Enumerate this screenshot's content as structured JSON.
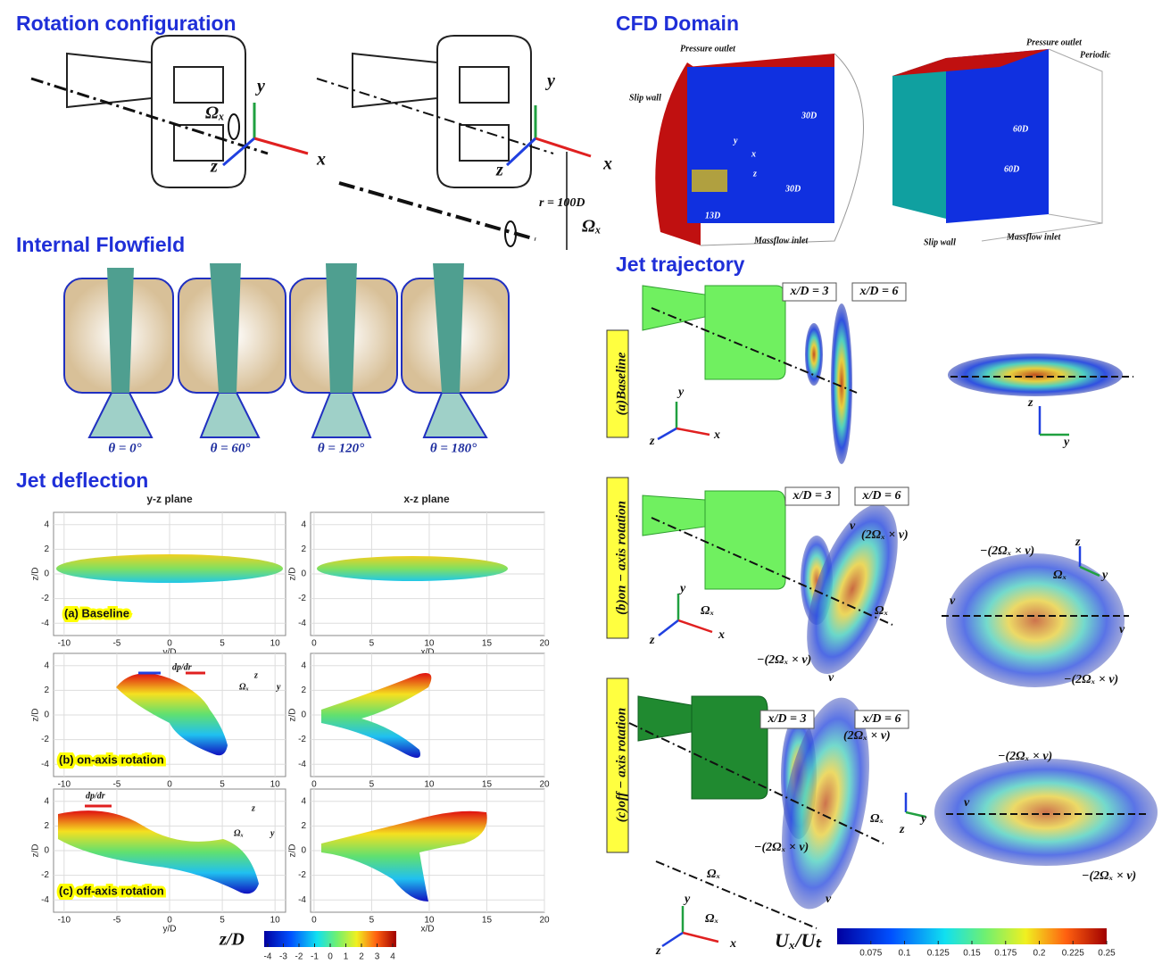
{
  "rotation_configuration": {
    "title": "Rotation configuration",
    "labels": [
      "y",
      "Ωₓ",
      "z",
      "x",
      "y",
      "z",
      "x",
      "r = 100D",
      "Ωₓ"
    ]
  },
  "cfd_domain": {
    "title": "CFD Domain",
    "left": {
      "labels": [
        "Pressure outlet",
        "Slip wall",
        "30D",
        "30D",
        "13D",
        "y",
        "x",
        "z",
        "Massflow inlet"
      ]
    },
    "right": {
      "labels": [
        "Pressure outlet",
        "Periodic",
        "60D",
        "60D",
        "Slip wall",
        "Massflow inlet"
      ]
    }
  },
  "internal_flowfield": {
    "title": "Internal Flowfield",
    "angles": [
      "θ = 0°",
      "θ = 60°",
      "θ = 120°",
      "θ = 180°"
    ]
  },
  "jet_deflection": {
    "title": "Jet deflection",
    "columns": [
      {
        "header": "y-z plane",
        "x_label": "y/D",
        "xlim": [
          -11,
          11
        ],
        "xticks": [
          -10,
          -5,
          0,
          5,
          10
        ]
      },
      {
        "header": "x-z plane",
        "x_label": "x/D",
        "xlim": [
          -0.3,
          20
        ],
        "xticks": [
          0,
          5,
          10,
          15,
          20
        ]
      }
    ],
    "y_label": "z/D",
    "ylim": [
      -5,
      5
    ],
    "yticks": [
      4,
      2,
      0,
      -2,
      -4
    ],
    "cases": [
      "(a) Baseline",
      "(b) on-axis rotation",
      "(c) off-axis rotation"
    ],
    "pressure_gradient": "dp/dr",
    "axis_labels": [
      "z",
      "Ωₓ",
      "y"
    ],
    "colorbar": {
      "label": "z/D",
      "lim": [
        -4,
        4
      ],
      "ticks": [
        -4,
        -3,
        -2,
        -1,
        0,
        1,
        2,
        3,
        4
      ]
    }
  },
  "jet_trajectory": {
    "title": "Jet trajectory",
    "cases": [
      "(a)Baseline",
      "(b)on − axis rotation",
      "(c)off − axis rotation"
    ],
    "stations": [
      "x/D = 3",
      "x/D = 6"
    ],
    "coriolis": "(2Ωₓ × v)",
    "neg_coriolis": "−(2Ωₓ × v)",
    "velocity": "v",
    "omega": "Ωₓ",
    "axes": [
      "x",
      "y",
      "z"
    ],
    "colorbar": {
      "label": "Uₓ/Uₜ",
      "lim": [
        0.05,
        0.25
      ],
      "ticks": [
        0.075,
        0.1,
        0.125,
        0.15,
        0.175,
        0.2,
        0.225,
        0.25
      ]
    }
  }
}
